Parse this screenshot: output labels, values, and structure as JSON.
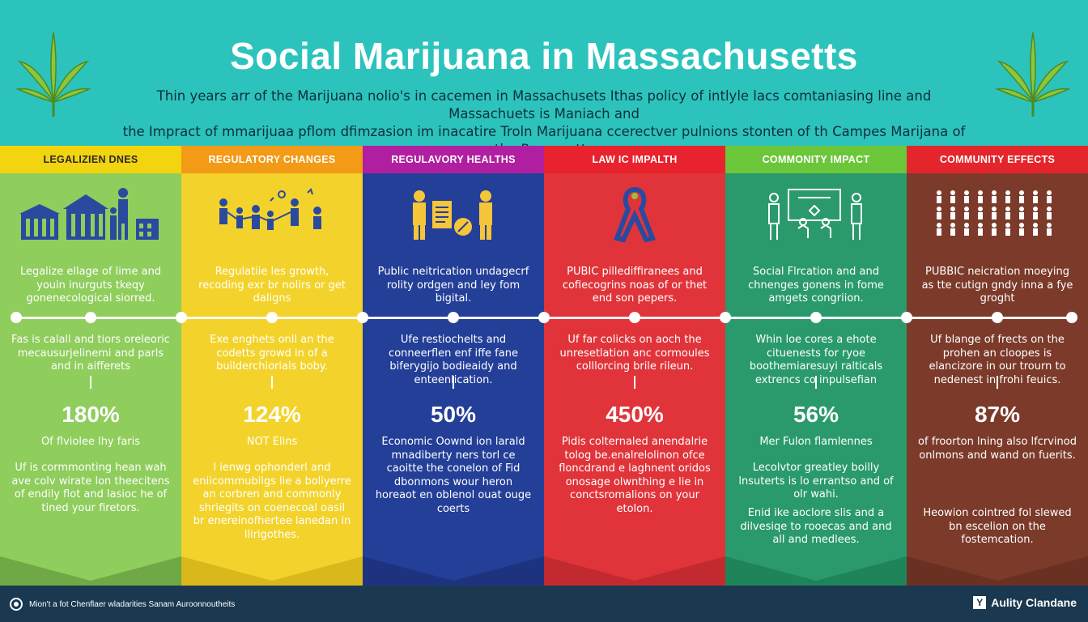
{
  "header": {
    "title": "Social Marijuana in Massachusetts",
    "subtitle_line1": "Thin years arr of the Marijuana nolio's in cacemen in Massachusets Ithas policy of intlyle lacs comtaniasing line and Massachuets is Maniach and",
    "subtitle_line2": "the Impract of mmarijuaa pflom dfimzasion im inacatire Troln Marijuana ccerectver pulnions stonten of th Campes Marijana of the Rascusetts"
  },
  "columns": [
    {
      "heading": "LEGALIZIEN DNES",
      "text1": "Legalize ellage of lime and youin inurguts tkeqy gonenecological siorred.",
      "text2": "Fas is calall and tiors oreleoric mecausurjelinemi and parls and in aifferets",
      "stat": "180%",
      "text3": "Of flviolee lhy faris",
      "text4": "Uf is cormmonting hean wah ave colv wirate lon theecitens of endily flot and lasioc he of tined your firetors.",
      "text5": "",
      "bg": "#8fcd5c",
      "head_bg": "#f2d40f",
      "head_color": "#2a2a2a",
      "chev": "#6fa844",
      "icon": "government-building-family-icon"
    },
    {
      "heading": "REGULATORY CHANGES",
      "text1": "Regulatiie les growth, recoding exr br nolirs or get daligns",
      "text2": "Exe enghets onll an the codetts growd in of a builderchiorials boby.",
      "stat": "124%",
      "text3": "NOT Elins",
      "text4": "l ienwg ophonderl and eniicommubilgs lie a boliyerre an corbren and commonly shriegits on coenecoal oasil br enereinofhertee lanedan in llirigothes.",
      "text5": "",
      "bg": "#f3d32b",
      "head_bg": "#f39a16",
      "head_color": "#ffffff",
      "chev": "#d9b81c",
      "icon": "people-group-icon"
    },
    {
      "heading": "REGULAVORY HEALTHS",
      "text1": "Public neitrication undagecrf rolity ordgen and ley fom bigital.",
      "text2": "Ufe restiochelts and conneerflen enf iffe fane biferygijo bodieaidy and enteenlication.",
      "stat": "50%",
      "text3": "Economic Oownd ion larald mnadiberty ners torl ce caoitte the conelon of Fid dbonmons wour heron horeaot en oblenol ouat ouge coerts",
      "text4": "",
      "text5": "",
      "bg": "#243f98",
      "head_bg": "#b01fa0",
      "head_color": "#ffffff",
      "chev": "#1d3380",
      "icon": "health-document-people-icon"
    },
    {
      "heading": "LAW IC IMPALTH",
      "text1": "PUBIC pillediffiranees and cofiecogrins noas of or thet end son pepers.",
      "text2": "Uf far colicks on aoch the unresetlation anc cormoules colllorcing brile rileun.",
      "stat": "450%",
      "text3": "Pidis colternaled anendalrie tolog be.enalrelolinon ofce floncdrand e laghnent oridos onosage olwnthing e lie in conctsromalions on your etolon.",
      "text4": "",
      "text5": "",
      "bg": "#e0343a",
      "head_bg": "#e8232e",
      "head_color": "#ffffff",
      "chev": "#c22a30",
      "icon": "awareness-ribbon-icon"
    },
    {
      "heading": "COMMONITY IMPACT",
      "text1": "Social Flrcation and and chnenges gonens in fome amgets congriion.",
      "text2": "Whin loe cores a ehote cituenests for ryoe boothemiaresuyi ralticals extrencs co inpulsefian",
      "stat": "56%",
      "text3": "Mer Fulon flamlennes",
      "text4": "Lecolvtor greatley boilly lnsuterts is lo errantso and of olr wahi.",
      "text5": "Enid ike aoclore slis and a dilvesiqe to rooecas and and all and medlees.",
      "bg": "#2a9a6c",
      "head_bg": "#6cc63a",
      "head_color": "#ffffff",
      "chev": "#20845a",
      "icon": "community-meeting-icon"
    },
    {
      "heading": "COMMUNITY EFFECTS",
      "text1": "PUBBIC neicration moeying as tte cutign gndy inna a fye groght",
      "text2": "Uf blange of frects on the prohen an cloopes is elancizore in our trourn to nedenest in frohi feuics.",
      "stat": "87%",
      "text3": "of froorton lning also lfcrvinod onlmons and wand on fuerits.",
      "text4": "",
      "text5": "Heowion cointred fol slewed bn escelion on the fostemcation.",
      "bg": "#7b3a2a",
      "head_bg": "#e4262c",
      "head_color": "#ffffff",
      "chev": "#6a3022",
      "icon": "population-icons-grid"
    }
  ],
  "footer": {
    "left_text": "Mion't a fot Chenflaer wladarities Sanam Auroonnoutheits",
    "right_text": "Aulity Clandane",
    "right_badge": "Y"
  },
  "colors": {
    "header_bg": "#2cc3bd",
    "footer_bg": "#1a3850",
    "title": "#ffffff"
  }
}
